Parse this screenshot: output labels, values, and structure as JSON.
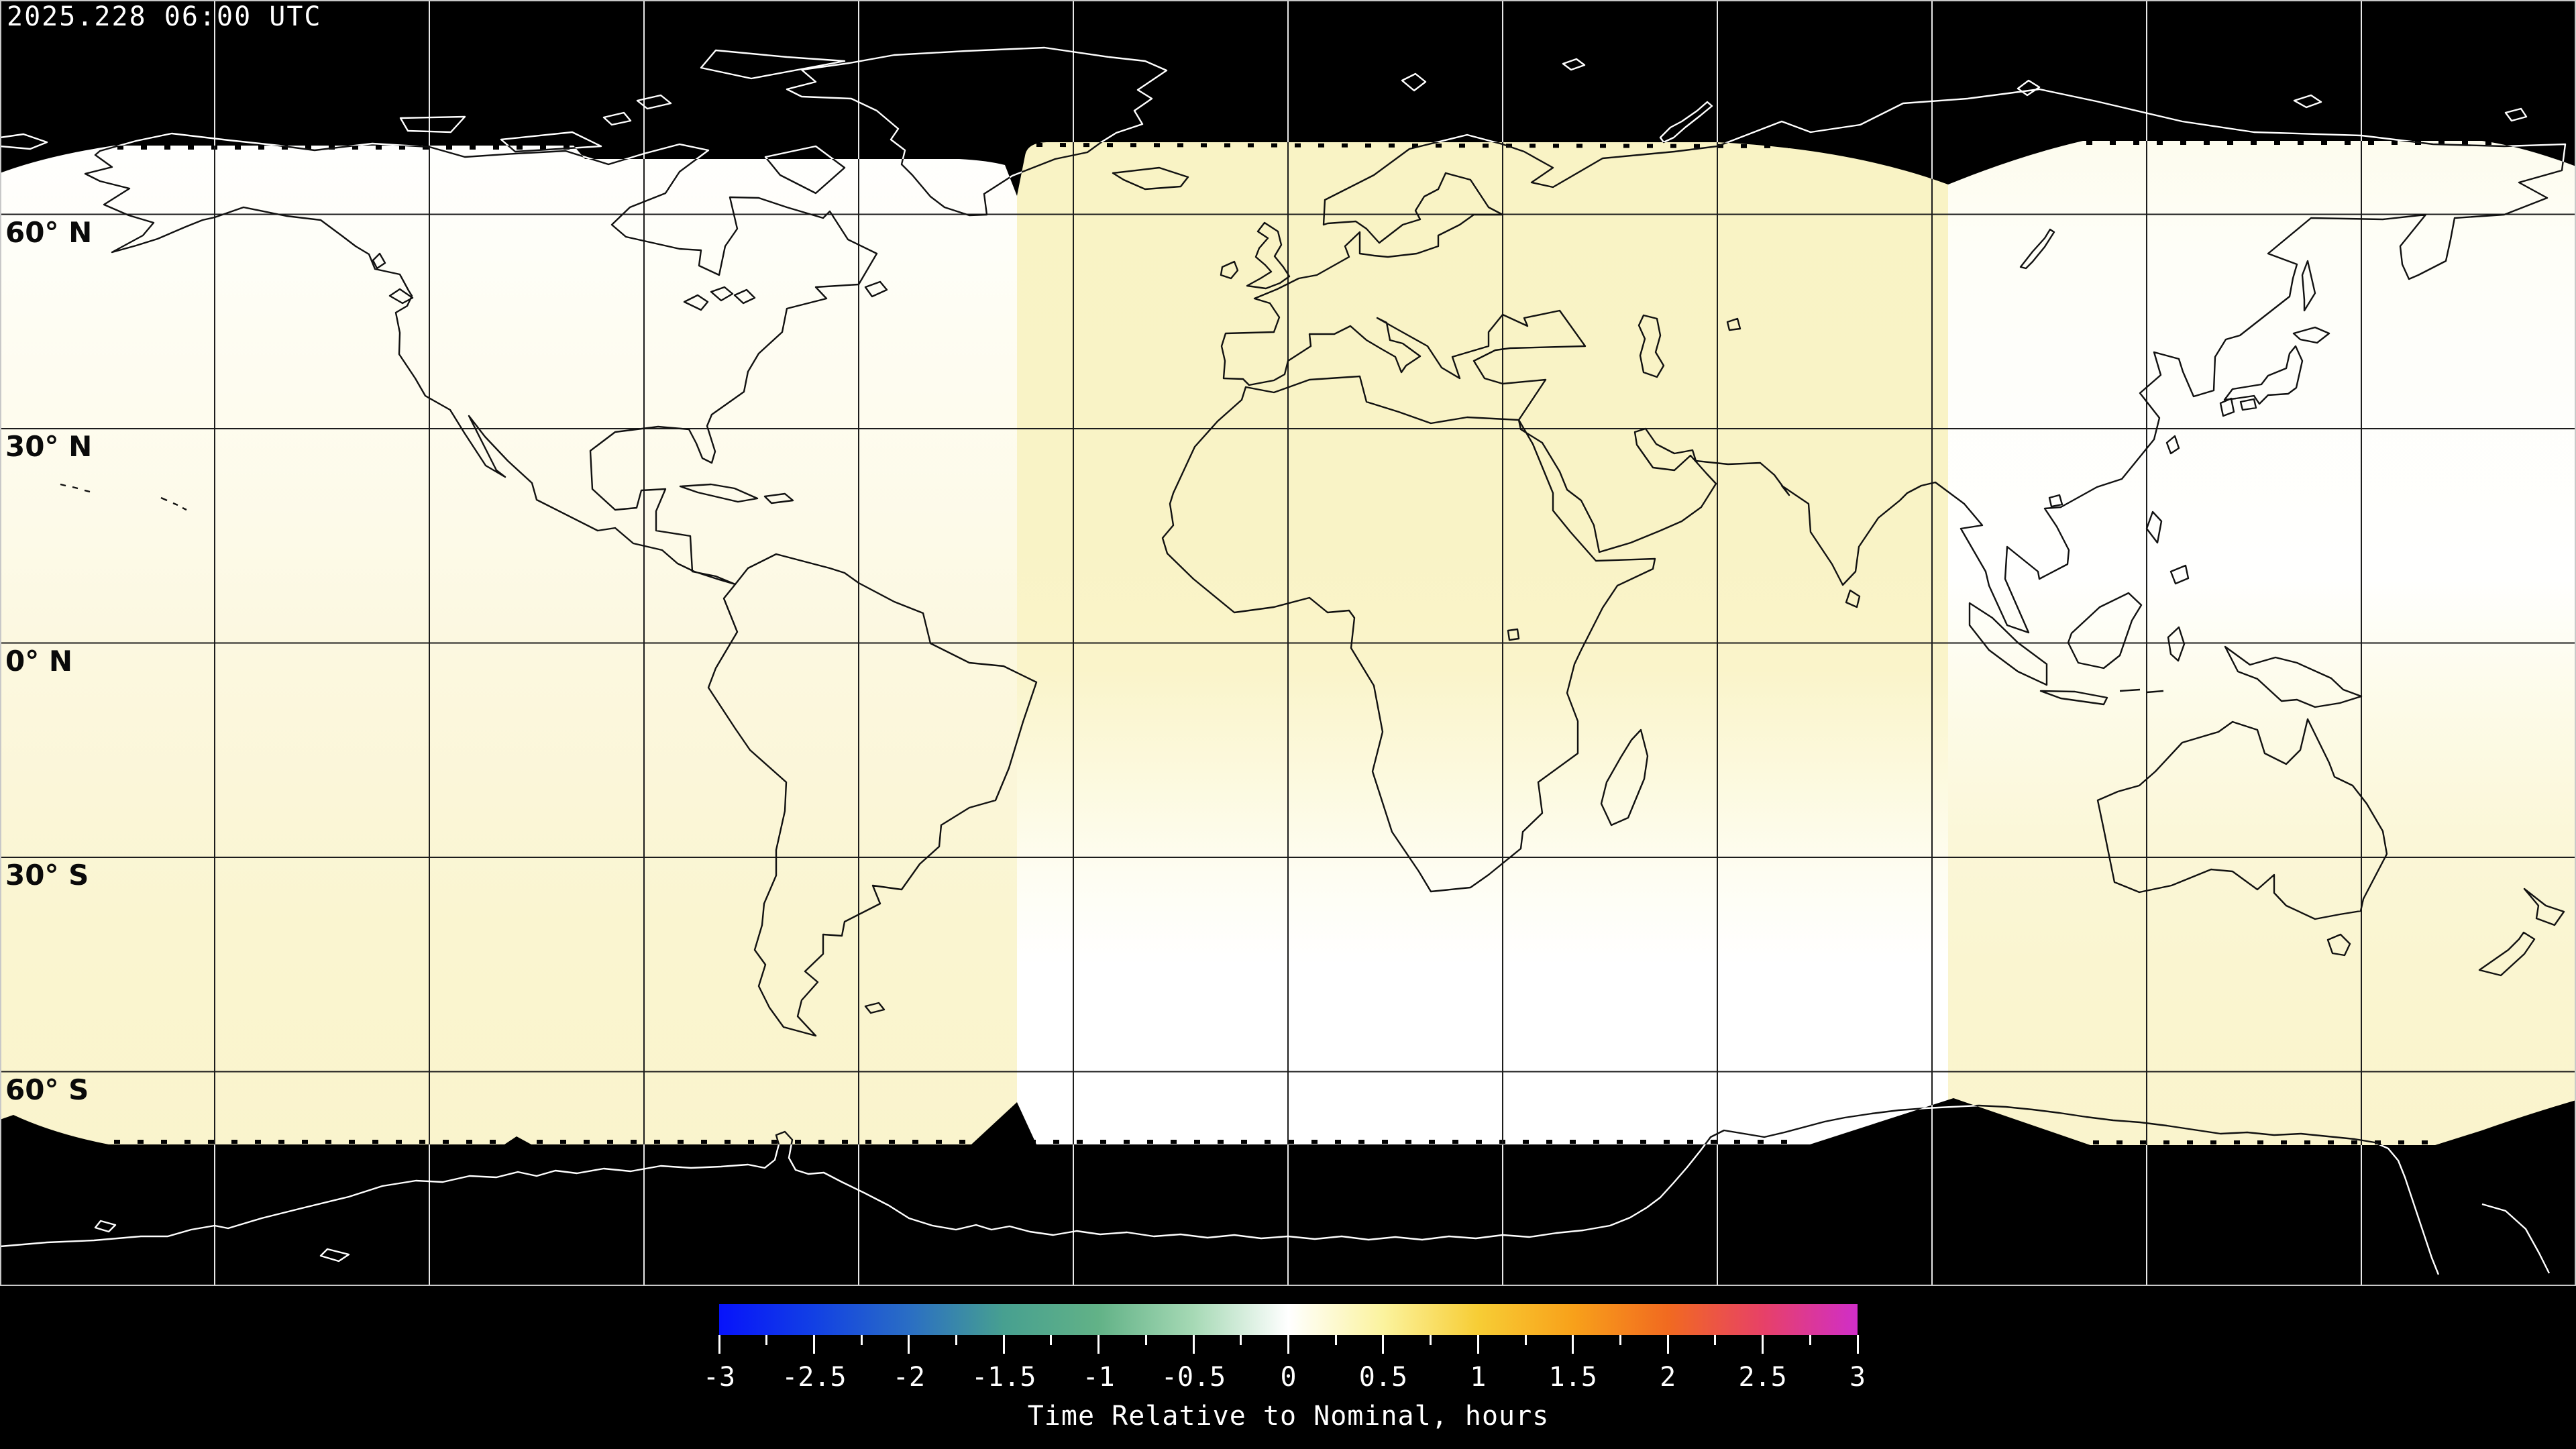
{
  "header": {
    "timestamp": "2025.228 06:00 UTC"
  },
  "map": {
    "lat_labels": [
      {
        "label": "60° N",
        "lat": 60
      },
      {
        "label": "30° N",
        "lat": 30
      },
      {
        "label": "0° N",
        "lat": 0
      },
      {
        "label": "30° S",
        "lat": -30
      },
      {
        "label": "60° S",
        "lat": -60
      }
    ],
    "grid_lats": [
      60,
      30,
      0,
      -30,
      -60
    ],
    "grid_lons": [
      -150,
      -120,
      -90,
      -60,
      -30,
      0,
      30,
      60,
      90,
      120,
      150
    ],
    "no_data_color": "#000000",
    "coastline_color_on_data": "#111111",
    "coastline_color_on_void": "#ffffff"
  },
  "chart_data": {
    "type": "heatmap",
    "title": "",
    "timestamp": "2025.228 06:00 UTC",
    "projection": "equirectangular world map",
    "grid": {
      "lat_spacing_deg": 30,
      "lon_spacing_deg": 30
    },
    "data_extent_lat_deg": [
      -70,
      70
    ],
    "swaths": [
      {
        "region": "west band (Americas / E Pacific)",
        "value_north_hours": 0.0,
        "value_south_hours": 0.3
      },
      {
        "region": "center band (Europe / Africa / W Asia)",
        "value_north_hours": 0.35,
        "value_south_hours": 0.0
      },
      {
        "region": "east band (E Asia / Australia)",
        "value_north_hours": 0.05,
        "value_south_hours": 0.3
      }
    ],
    "colorbar": {
      "label": "Time Relative to Nominal, hours",
      "min": -3,
      "max": 3,
      "major_tick_step": 0.5,
      "minor_tick_step": 0.25,
      "tick_labels": [
        "-3",
        "-2.5",
        "-2",
        "-1.5",
        "-1",
        "-0.5",
        "0",
        "0.5",
        "1",
        "1.5",
        "2",
        "2.5",
        "3"
      ],
      "stops": [
        {
          "value": -3,
          "color": "#0713fb"
        },
        {
          "value": -2.5,
          "color": "#1240e4"
        },
        {
          "value": -2,
          "color": "#2a6ec4"
        },
        {
          "value": -1.5,
          "color": "#47a090"
        },
        {
          "value": -1,
          "color": "#62b287"
        },
        {
          "value": -0.5,
          "color": "#a6d9b5"
        },
        {
          "value": 0,
          "color": "#ffffff"
        },
        {
          "value": 0.5,
          "color": "#fbf39e"
        },
        {
          "value": 1,
          "color": "#f7cd35"
        },
        {
          "value": 1.5,
          "color": "#f8a11a"
        },
        {
          "value": 2,
          "color": "#f16a20"
        },
        {
          "value": 2.5,
          "color": "#e74167"
        },
        {
          "value": 3,
          "color": "#d02ec8"
        }
      ]
    }
  }
}
